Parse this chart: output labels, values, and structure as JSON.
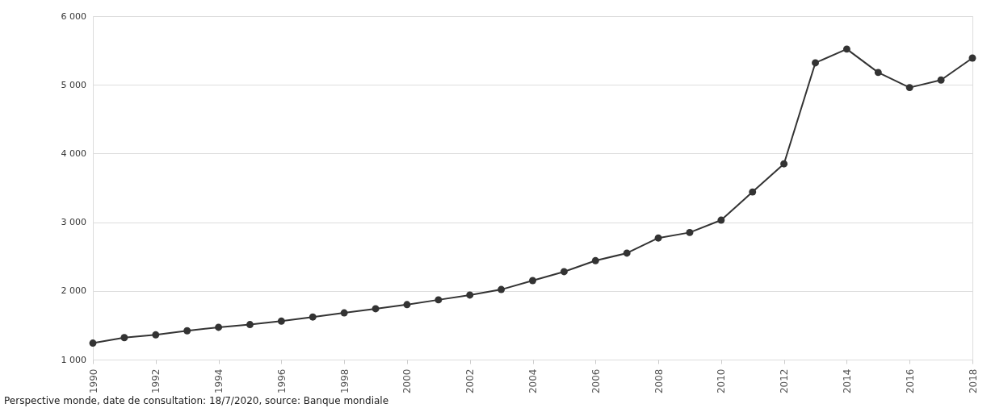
{
  "chart_data": {
    "type": "line",
    "x": [
      1990,
      1991,
      1992,
      1993,
      1994,
      1995,
      1996,
      1997,
      1998,
      1999,
      2000,
      2001,
      2002,
      2003,
      2004,
      2005,
      2006,
      2007,
      2008,
      2009,
      2010,
      2011,
      2012,
      2013,
      2014,
      2015,
      2016,
      2017,
      2018
    ],
    "series": [
      {
        "color": "#333333",
        "values": [
          1240,
          1320,
          1360,
          1420,
          1470,
          1510,
          1560,
          1620,
          1680,
          1740,
          1800,
          1870,
          1940,
          2020,
          2150,
          2280,
          2440,
          2550,
          2770,
          2850,
          3030,
          3440,
          3850,
          5320,
          5520,
          5180,
          4960,
          5070,
          5390
        ]
      }
    ],
    "xlim": [
      1990,
      2018
    ],
    "xticks": [
      1990,
      1992,
      1994,
      1996,
      1998,
      2000,
      2002,
      2004,
      2006,
      2008,
      2010,
      2012,
      2014,
      2016,
      2018
    ],
    "ylim": [
      1000,
      6000
    ],
    "yticks": [
      {
        "value": 1000,
        "label": "1 000"
      },
      {
        "value": 2000,
        "label": "2 000"
      },
      {
        "value": 3000,
        "label": "3 000"
      },
      {
        "value": 4000,
        "label": "4 000"
      },
      {
        "value": 5000,
        "label": "5 000"
      },
      {
        "value": 6000,
        "label": "6 000"
      }
    ],
    "grid": "y",
    "marker": "circle",
    "line_style": "solid",
    "annotations": [
      "Perspective monde, date de consultation: 18/7/2020, source: Banque mondiale"
    ]
  }
}
